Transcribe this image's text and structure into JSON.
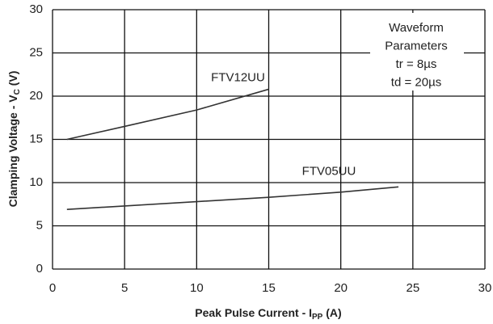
{
  "chart_data": {
    "type": "line",
    "xlabel": [
      "Peak Pulse Current - I",
      "PP",
      " (A)"
    ],
    "ylabel": [
      "Clamping Voltage - V",
      "C",
      " (V)"
    ],
    "annotation": [
      "Waveform",
      "Parameters",
      "tr = 8µs",
      "td = 20µs"
    ],
    "xlim": [
      0,
      30
    ],
    "xticks": [
      0,
      5,
      10,
      15,
      20,
      25,
      30
    ],
    "ylim": [
      0,
      30
    ],
    "yticks": [
      0,
      5,
      10,
      15,
      20,
      25,
      30
    ],
    "grid": true,
    "series": [
      {
        "name": "FTV12UU",
        "color": "#333333",
        "x": [
          1,
          5,
          10,
          15
        ],
        "values": [
          15,
          16.5,
          18.4,
          20.8
        ]
      },
      {
        "name": "FTV05UU",
        "color": "#333333",
        "x": [
          1,
          5,
          10,
          15,
          20,
          24
        ],
        "values": [
          6.9,
          7.3,
          7.8,
          8.3,
          8.9,
          9.5
        ]
      }
    ]
  }
}
